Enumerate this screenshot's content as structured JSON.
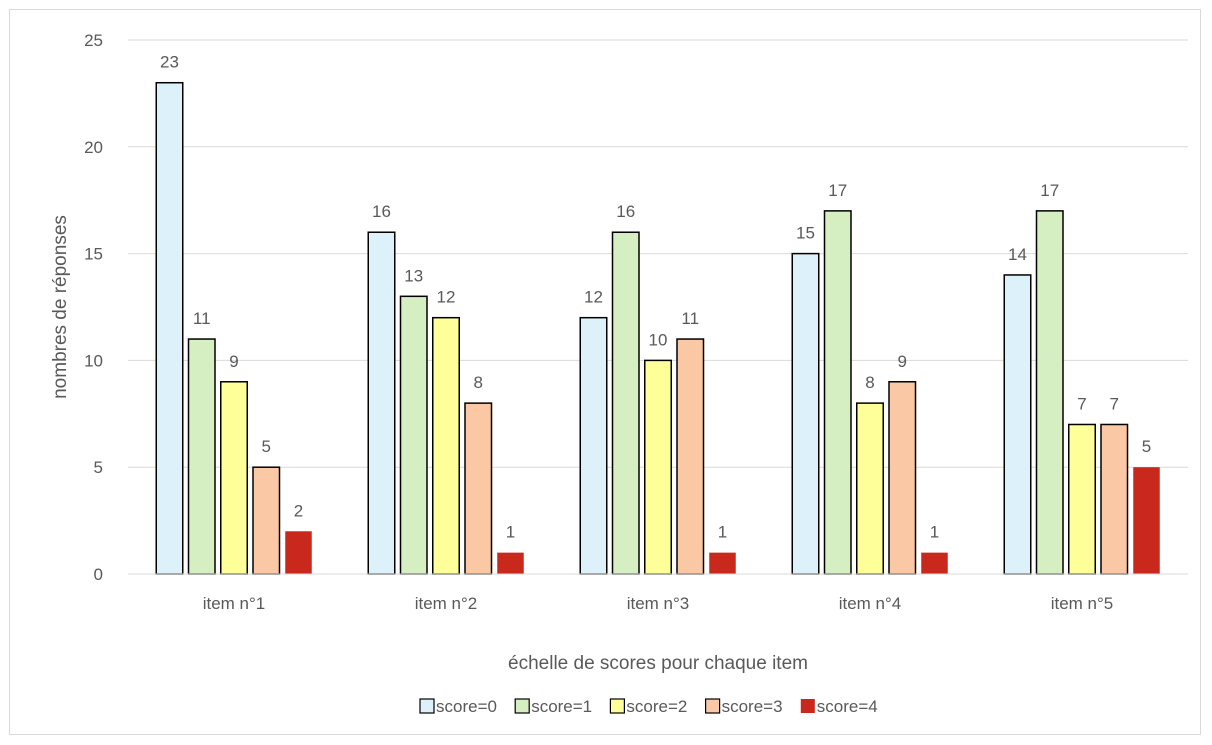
{
  "chart_data": {
    "type": "bar",
    "title": "",
    "xlabel": "échelle de scores pour chaque item",
    "ylabel": "nombres de réponses",
    "ylim": [
      0,
      25
    ],
    "yticks": [
      0,
      5,
      10,
      15,
      20,
      25
    ],
    "categories": [
      "item n°1",
      "item n°2",
      "item n°3",
      "item n°4",
      "item n°5"
    ],
    "series": [
      {
        "name": "score=0",
        "color": "#DDF1FA",
        "values": [
          23,
          16,
          12,
          15,
          14
        ]
      },
      {
        "name": "score=1",
        "color": "#D6EFC2",
        "values": [
          11,
          13,
          16,
          17,
          17
        ]
      },
      {
        "name": "score=2",
        "color": "#FFFF99",
        "values": [
          9,
          12,
          10,
          8,
          7
        ]
      },
      {
        "name": "score=3",
        "color": "#FBC8A6",
        "values": [
          5,
          8,
          11,
          9,
          7
        ]
      },
      {
        "name": "score=4",
        "color": "#C9281C",
        "values": [
          2,
          1,
          1,
          1,
          5
        ]
      }
    ],
    "grid": true,
    "data_labels": true,
    "legend": "bottom"
  }
}
